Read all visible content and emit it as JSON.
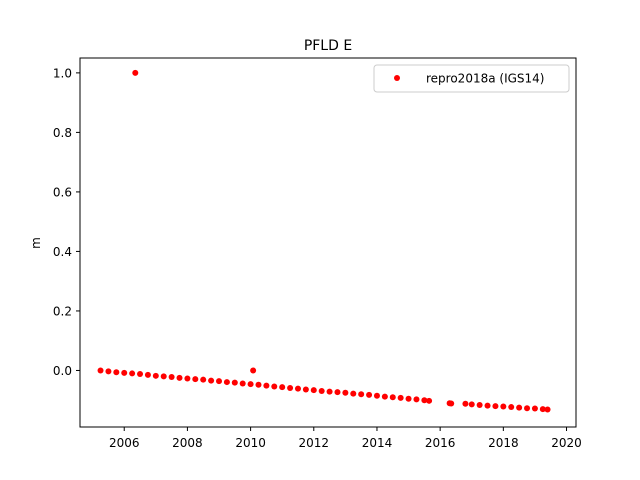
{
  "chart_data": {
    "type": "scatter",
    "title": "PFLD E",
    "xlabel": "",
    "ylabel": "m",
    "xlim": [
      2004.6,
      2020.3
    ],
    "ylim": [
      -0.19,
      1.05
    ],
    "xticks": [
      2006,
      2008,
      2010,
      2012,
      2014,
      2016,
      2018,
      2020
    ],
    "yticks": [
      0.0,
      0.2,
      0.4,
      0.6,
      0.8,
      1.0
    ],
    "xtick_labels": [
      "2006",
      "2008",
      "2010",
      "2012",
      "2014",
      "2016",
      "2018",
      "2020"
    ],
    "ytick_labels": [
      "0.0",
      "0.2",
      "0.4",
      "0.6",
      "0.8",
      "1.0"
    ],
    "grid": false,
    "legend_position": "top-right",
    "series": [
      {
        "name": "repro2018a (IGS14)",
        "color": "#ff0000",
        "marker": "circle",
        "x": [
          2005.25,
          2005.5,
          2005.75,
          2006.0,
          2006.25,
          2006.35,
          2006.5,
          2006.75,
          2007.0,
          2007.25,
          2007.5,
          2007.75,
          2008.0,
          2008.25,
          2008.5,
          2008.75,
          2009.0,
          2009.25,
          2009.5,
          2009.75,
          2010.0,
          2010.08,
          2010.25,
          2010.5,
          2010.75,
          2011.0,
          2011.25,
          2011.5,
          2011.75,
          2012.0,
          2012.25,
          2012.5,
          2012.75,
          2013.0,
          2013.25,
          2013.5,
          2013.75,
          2014.0,
          2014.25,
          2014.5,
          2014.75,
          2015.0,
          2015.25,
          2015.5,
          2015.65,
          2016.3,
          2016.35,
          2016.8,
          2017.0,
          2017.25,
          2017.5,
          2017.75,
          2018.0,
          2018.25,
          2018.5,
          2018.75,
          2019.0,
          2019.25,
          2019.4
        ],
        "y": [
          0.0,
          -0.003,
          -0.006,
          -0.008,
          -0.01,
          1.0,
          -0.012,
          -0.015,
          -0.018,
          -0.02,
          -0.022,
          -0.025,
          -0.027,
          -0.029,
          -0.031,
          -0.034,
          -0.036,
          -0.039,
          -0.041,
          -0.044,
          -0.046,
          0.0,
          -0.048,
          -0.051,
          -0.054,
          -0.056,
          -0.059,
          -0.061,
          -0.064,
          -0.066,
          -0.069,
          -0.071,
          -0.073,
          -0.075,
          -0.078,
          -0.08,
          -0.082,
          -0.085,
          -0.088,
          -0.09,
          -0.092,
          -0.095,
          -0.097,
          -0.1,
          -0.102,
          -0.11,
          -0.111,
          -0.112,
          -0.114,
          -0.116,
          -0.118,
          -0.12,
          -0.121,
          -0.123,
          -0.125,
          -0.127,
          -0.128,
          -0.13,
          -0.131
        ]
      }
    ]
  }
}
